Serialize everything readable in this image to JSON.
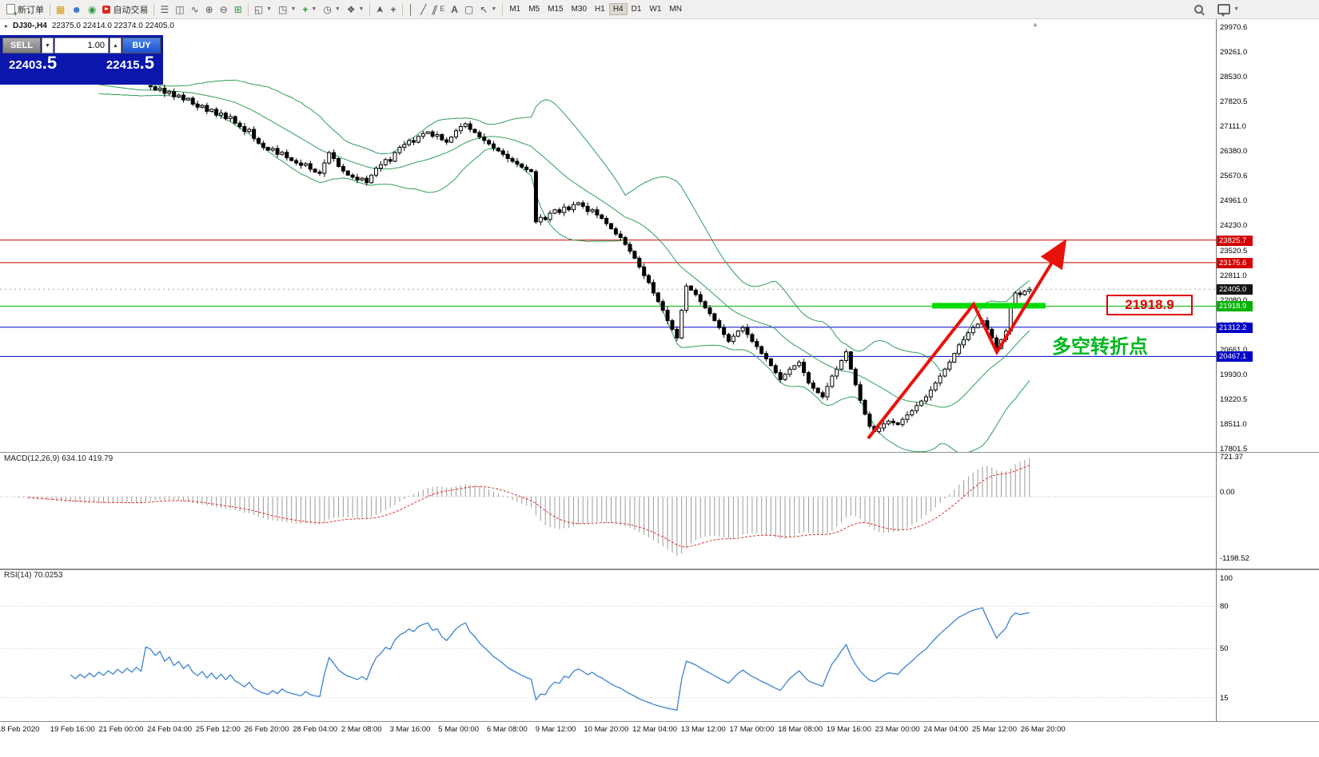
{
  "toolbar": {
    "new_order_label": "新订单",
    "autotrading_label": "自动交易",
    "timeframes": [
      "M1",
      "M5",
      "M15",
      "M30",
      "H1",
      "H4",
      "D1",
      "W1",
      "MN"
    ],
    "active_timeframe": "H4"
  },
  "chart_header": {
    "symbol": "DJ30-,H4",
    "ohlc": "22375.0 22414.0 22374.0 22405.0"
  },
  "order_panel": {
    "sell_label": "SELL",
    "buy_label": "BUY",
    "volume": "1.00",
    "sell_price": "22403",
    "sell_price_frac": ".5",
    "buy_price": "22415",
    "buy_price_frac": ".5"
  },
  "price_axis": [
    "29970.6",
    "29261.0",
    "28530.0",
    "27820.5",
    "27111.0",
    "26380.0",
    "25670.6",
    "24961.0",
    "24230.0",
    "23520.5",
    "22811.0",
    "22080.0",
    "21370.5",
    "20661.0",
    "19930.0",
    "19220.5",
    "18511.0",
    "17801.5"
  ],
  "price_tags": [
    {
      "label": "23825.7",
      "color": "#d40000",
      "price": 23825.7,
      "line": true
    },
    {
      "label": "23175.6",
      "color": "#d40000",
      "price": 23175.6,
      "line": true
    },
    {
      "label": "22405.0",
      "color": "#141414",
      "price": 22405.0,
      "line": false
    },
    {
      "label": "21918.9",
      "color": "#00b200",
      "price": 21918.9,
      "line": true
    },
    {
      "label": "21312.2",
      "color": "#0000c8",
      "price": 21312.2,
      "line": true
    },
    {
      "label": "20467.1",
      "color": "#0000c8",
      "price": 20467.1,
      "line": true
    }
  ],
  "annotations": {
    "price_box": "21918.9",
    "turning_point": "多空转折点"
  },
  "indicators": {
    "macd_label": "MACD(12,26,9) 634.10 419.79",
    "macd_axis": [
      "721.37",
      "0.00",
      "-1198.52"
    ],
    "rsi_label": "RSI(14) 70.0253",
    "rsi_axis": [
      "100",
      "80",
      "50",
      "15"
    ]
  },
  "time_axis": [
    "18 Feb 2020",
    "19 Feb 16:00",
    "21 Feb 00:00",
    "24 Feb 04:00",
    "25 Feb 12:00",
    "26 Feb 20:00",
    "28 Feb 04:00",
    "2 Mar 08:00",
    "3 Mar 16:00",
    "5 Mar 00:00",
    "6 Mar 08:00",
    "9 Mar 12:00",
    "10 Mar 20:00",
    "12 Mar 04:00",
    "13 Mar 12:00",
    "17 Mar 00:00",
    "18 Mar 08:00",
    "19 Mar 16:00",
    "23 Mar 00:00",
    "24 Mar 04:00",
    "25 Mar 12:00",
    "26 Mar 20:00"
  ],
  "chart_data": {
    "type": "candlestick",
    "symbol": "DJ30",
    "period": "H4",
    "ohlc_display": {
      "open": 22375.0,
      "high": 22414.0,
      "low": 22374.0,
      "close": 22405.0
    },
    "levels": {
      "resistance": [
        23825.7,
        23175.6
      ],
      "support": [
        21312.2,
        20467.1
      ],
      "key_level": 21918.9,
      "last_price": 22405.0
    },
    "bollinger": {
      "period": 20,
      "deviation": 2
    },
    "macd": {
      "fast": 12,
      "slow": 26,
      "signal": 9,
      "value": 634.1,
      "signal_value": 419.79,
      "axis_max": 721.37,
      "axis_min": -1198.52
    },
    "rsi": {
      "period": 14,
      "value": 70.0253
    },
    "price_axis_range": {
      "top": 29970.6,
      "bottom": 17801.5
    },
    "visible_from_index": 31,
    "closes": [
      28600,
      28520,
      28560,
      28460,
      28500,
      28400,
      28440,
      28340,
      28380,
      28300,
      28340,
      28260,
      28300,
      28220,
      28260,
      28180,
      28220,
      28150,
      28190,
      28120,
      28160,
      28100,
      28140,
      28080,
      28120,
      28060,
      28100,
      28040,
      28080,
      28020,
      28280,
      28250,
      28160,
      28210,
      28060,
      28110,
      27960,
      28010,
      27870,
      27920,
      27750,
      27660,
      27710,
      27540,
      27600,
      27430,
      27490,
      27330,
      27390,
      27200,
      27100,
      26960,
      27020,
      26760,
      26620,
      26500,
      26420,
      26470,
      26300,
      26360,
      26200,
      26120,
      26050,
      25980,
      26030,
      25870,
      25790,
      25750,
      26050,
      26350,
      26180,
      25950,
      25820,
      25700,
      25640,
      25560,
      25610,
      25480,
      25700,
      25900,
      26000,
      26150,
      26100,
      26350,
      26500,
      26580,
      26700,
      26650,
      26820,
      26900,
      26950,
      26820,
      26870,
      26720,
      26650,
      26800,
      26980,
      27100,
      27180,
      27020,
      26930,
      26800,
      26700,
      26600,
      26480,
      26400,
      26300,
      26180,
      26100,
      26020,
      25930,
      25860,
      25800,
      24350,
      24480,
      24420,
      24600,
      24700,
      24620,
      24780,
      24700,
      24850,
      24900,
      24800,
      24650,
      24700,
      24550,
      24450,
      24300,
      24150,
      24000,
      23900,
      23700,
      23500,
      23300,
      23050,
      22800,
      22600,
      22300,
      22050,
      21800,
      21500,
      21250,
      21000,
      21800,
      22500,
      22380,
      22250,
      22050,
      21870,
      21700,
      21500,
      21300,
      21100,
      20900,
      21050,
      21200,
      21300,
      21100,
      20900,
      20750,
      20550,
      20400,
      20200,
      20000,
      19800,
      19950,
      20100,
      20200,
      20300,
      20000,
      19700,
      19550,
      19420,
      19300,
      19600,
      19900,
      20100,
      20350,
      20600,
      20100,
      19650,
      19200,
      18800,
      18450,
      18300,
      18400,
      18520,
      18600,
      18550,
      18500,
      18650,
      18780,
      18900,
      19050,
      19180,
      19300,
      19500,
      19700,
      19900,
      20100,
      20300,
      20550,
      20800,
      20950,
      21150,
      21300,
      21400,
      21500,
      21250,
      21000,
      20700,
      20950,
      21200,
      21900,
      22300,
      22250,
      22350,
      22405
    ]
  }
}
